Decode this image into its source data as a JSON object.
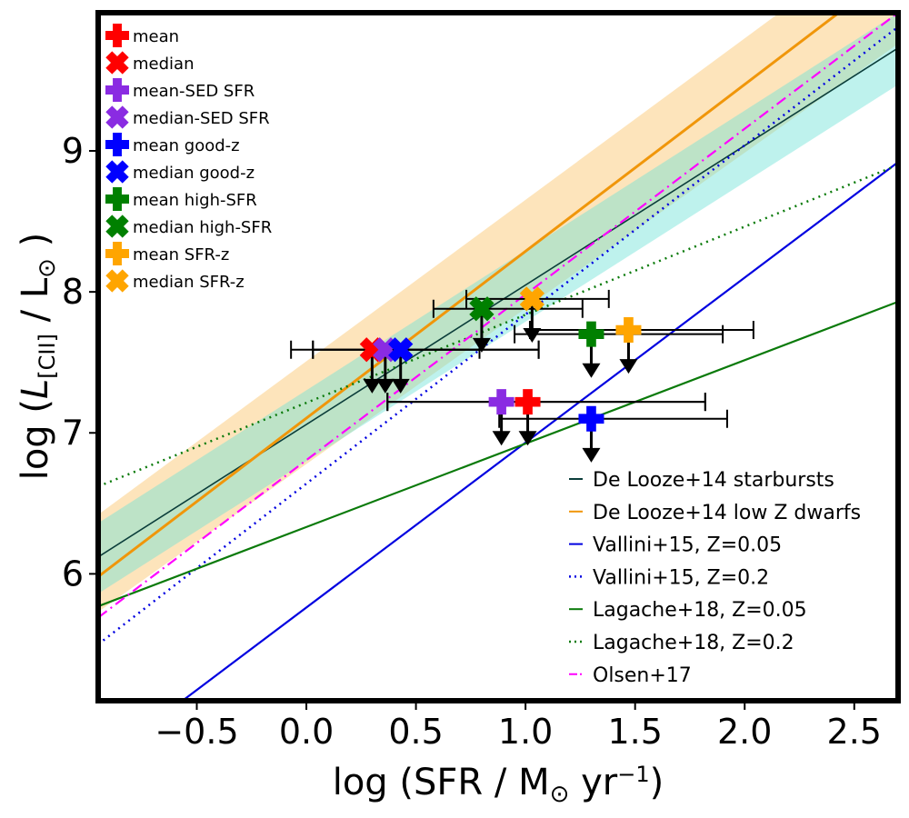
{
  "chart_data": {
    "type": "scatter",
    "xlabel": "log (SFR / M⊙ yr⁻¹)",
    "ylabel": "log (L[CII] / L⊙)",
    "xlim": [
      -0.95,
      2.7
    ],
    "ylim": [
      5.1,
      9.98
    ],
    "xticks": [
      -0.5,
      0.0,
      0.5,
      1.0,
      1.5,
      2.0,
      2.5
    ],
    "xtick_labels": [
      "−0.5",
      "0.0",
      "0.5",
      "1.0",
      "1.5",
      "2.0",
      "2.5"
    ],
    "yticks": [
      6,
      7,
      8,
      9
    ],
    "ytick_labels": [
      "6",
      "7",
      "8",
      "9"
    ],
    "bands": [
      {
        "name": "De Looze+14 low Z dwarfs band",
        "color": "#fde4bb",
        "lower": [
          [
            -0.95,
            5.73
          ],
          [
            2.7,
            9.76
          ]
        ],
        "upper": [
          [
            -0.95,
            6.42
          ],
          [
            2.7,
            10.6
          ]
        ]
      },
      {
        "name": "De Looze+14 starbursts band",
        "color": "#6fe3d8",
        "opacity": 0.45,
        "lower": [
          [
            -0.95,
            5.86
          ],
          [
            2.7,
            9.47
          ]
        ],
        "upper": [
          [
            -0.95,
            6.36
          ],
          [
            2.7,
            9.98
          ]
        ]
      }
    ],
    "relations": [
      {
        "name": "De Looze+14 starbursts",
        "color": "#0b3d3a",
        "dash": "solid",
        "width": 1.6,
        "points": [
          [
            -0.95,
            6.12
          ],
          [
            2.7,
            9.73
          ]
        ],
        "legend": true
      },
      {
        "name": "De Looze+14 low Z dwarfs",
        "color": "#f0960a",
        "dash": "solid",
        "width": 3,
        "points": [
          [
            -0.95,
            5.98
          ],
          [
            2.7,
            10.3
          ]
        ],
        "legend": true
      },
      {
        "name": "Vallini+15, Z=0.05",
        "color": "#0000e0",
        "dash": "solid",
        "width": 2.2,
        "points": [
          [
            -0.95,
            4.65
          ],
          [
            2.7,
            8.92
          ]
        ],
        "legend": true
      },
      {
        "name": "Vallini+15, Z=0.2",
        "color": "#0000e0",
        "dash": "dot",
        "width": 2.5,
        "points": [
          [
            -0.95,
            5.5
          ],
          [
            2.7,
            9.88
          ]
        ],
        "legend": true
      },
      {
        "name": "Lagache+18, Z=0.05",
        "color": "#0a7a0a",
        "dash": "solid",
        "width": 2.2,
        "points": [
          [
            -0.95,
            5.77
          ],
          [
            2.7,
            7.93
          ]
        ],
        "legend": true
      },
      {
        "name": "Lagache+18, Z=0.2",
        "color": "#0a7a0a",
        "dash": "dot",
        "width": 2.5,
        "points": [
          [
            -0.95,
            6.62
          ],
          [
            2.7,
            8.9
          ]
        ],
        "legend": true
      },
      {
        "name": "Olsen+17",
        "color": "#ff00ff",
        "dash": "dashdot",
        "width": 2.2,
        "points": [
          [
            -0.95,
            5.69
          ],
          [
            2.7,
            9.98
          ]
        ],
        "legend": true
      }
    ],
    "series": [
      {
        "name": "mean",
        "marker": "plus",
        "color": "#ff0000",
        "x": 1.01,
        "y": 7.22,
        "xerr": [
          0.64,
          0.81
        ]
      },
      {
        "name": "median",
        "marker": "x",
        "color": "#ff0000",
        "x": 0.3,
        "y": 7.59,
        "xerr": [
          0.27,
          0.76
        ]
      },
      {
        "name": "mean-SED SFR",
        "marker": "plus",
        "color": "#8a2be2",
        "x": 0.89,
        "y": 7.22,
        "xerr": [
          0.52,
          0.93
        ]
      },
      {
        "name": "median-SED SFR",
        "marker": "x",
        "color": "#8a2be2",
        "x": 0.36,
        "y": 7.59,
        "xerr": [
          0.33,
          0.7
        ]
      },
      {
        "name": "mean good-z",
        "marker": "plus",
        "color": "#0000ff",
        "x": 1.3,
        "y": 7.1,
        "xerr": [
          0.42,
          0.62
        ]
      },
      {
        "name": "median good-z",
        "marker": "x",
        "color": "#0000ff",
        "x": 0.43,
        "y": 7.59,
        "xerr": [
          0.5,
          0.36
        ]
      },
      {
        "name": "mean high-SFR",
        "marker": "plus",
        "color": "#008000",
        "x": 1.3,
        "y": 7.7,
        "xerr": [
          0.35,
          0.6
        ]
      },
      {
        "name": "median high-SFR",
        "marker": "x",
        "color": "#008000",
        "x": 0.8,
        "y": 7.88,
        "xerr": [
          0.22,
          0.46
        ]
      },
      {
        "name": "mean SFR-z",
        "marker": "plus",
        "color": "#ffa500",
        "x": 1.47,
        "y": 7.73,
        "xerr": [
          0.45,
          0.57
        ]
      },
      {
        "name": "median SFR-z",
        "marker": "x",
        "color": "#ffa500",
        "x": 1.03,
        "y": 7.95,
        "xerr": [
          0.3,
          0.35
        ]
      }
    ],
    "upper_limit_arrows": [
      {
        "x": 0.3,
        "y_top": 7.59,
        "y_tip": 7.28
      },
      {
        "x": 0.36,
        "y_top": 7.59,
        "y_tip": 7.28
      },
      {
        "x": 0.43,
        "y_top": 7.59,
        "y_tip": 7.28
      },
      {
        "x": 0.8,
        "y_top": 7.88,
        "y_tip": 7.57
      },
      {
        "x": 1.03,
        "y_top": 7.95,
        "y_tip": 7.64
      },
      {
        "x": 1.3,
        "y_top": 7.7,
        "y_tip": 7.39
      },
      {
        "x": 1.47,
        "y_top": 7.73,
        "y_tip": 7.42
      },
      {
        "x": 0.89,
        "y_top": 7.22,
        "y_tip": 6.91
      },
      {
        "x": 1.01,
        "y_top": 7.22,
        "y_tip": 6.91
      },
      {
        "x": 1.3,
        "y_top": 7.1,
        "y_tip": 6.79
      }
    ],
    "legend_position": "top-left",
    "legend2_position": "lower-right",
    "grid": false
  }
}
